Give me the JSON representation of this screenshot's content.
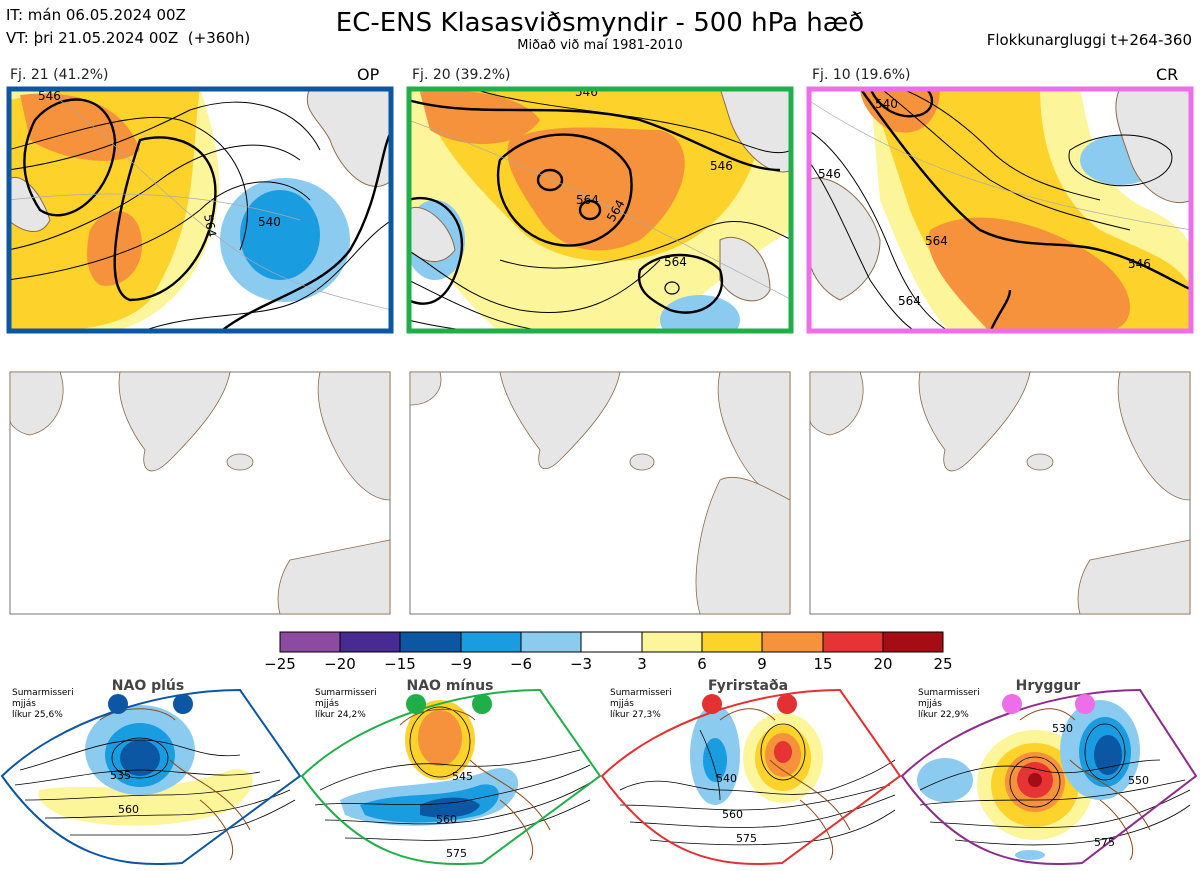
{
  "header": {
    "it": "IT: mán 06.05.2024 00Z",
    "vt": "VT: þri 21.05.2024 00Z  (+360h)",
    "title": "EC-ENS Klasasviðsmyndir - 500 hPa hæð",
    "subtitle": "Miðað við maí 1981-2010",
    "window": "Flokkunargluggi t+264-360"
  },
  "clusters": [
    {
      "label": "Fj. 21 (41.2%)",
      "tag": "OP",
      "border": "#0b57a4"
    },
    {
      "label": "Fj. 20 (39.2%)",
      "tag": "",
      "border": "#1fae48"
    },
    {
      "label": "Fj. 10 (19.6%)",
      "tag": "CR",
      "border": "#ee6ee9"
    }
  ],
  "contour_labels": [
    "546",
    "564",
    "540",
    "546",
    "564",
    "564",
    "546",
    "564",
    "546",
    "564",
    "540",
    "546",
    "564"
  ],
  "colorbar": {
    "ticks": [
      "−25",
      "−20",
      "−15",
      "−9",
      "−6",
      "−3",
      "3",
      "6",
      "9",
      "15",
      "20",
      "25"
    ],
    "colors": [
      "#8c4ba0",
      "#472a92",
      "#0b57a4",
      "#1a9de0",
      "#8ccbf0",
      "#ffffff",
      "#fdf59a",
      "#fdd22a",
      "#f5923b",
      "#e63334",
      "#a50d14"
    ]
  },
  "regimes": [
    {
      "name": "NAO plús",
      "season": "Sumarmisseri",
      "sim": "mjjás",
      "prob": "líkur 25,6%",
      "color": "#0b57a4",
      "labels": [
        "535",
        "560"
      ]
    },
    {
      "name": "NAO mínus",
      "season": "Sumarmisseri",
      "sim": "mjjás",
      "prob": "líkur 24,2%",
      "color": "#1fae48",
      "labels": [
        "545",
        "560",
        "575"
      ]
    },
    {
      "name": "Fyrirstaða",
      "season": "Sumarmisseri",
      "sim": "mjjás",
      "prob": "líkur 27,3%",
      "color": "#e33030",
      "labels": [
        "540",
        "560",
        "575"
      ]
    },
    {
      "name": "Hryggur",
      "season": "Sumarmisseri",
      "sim": "mjjás",
      "prob": "líkur 22,9%",
      "color": "#8e2b8c",
      "labels": [
        "530",
        "550",
        "575"
      ]
    }
  ]
}
